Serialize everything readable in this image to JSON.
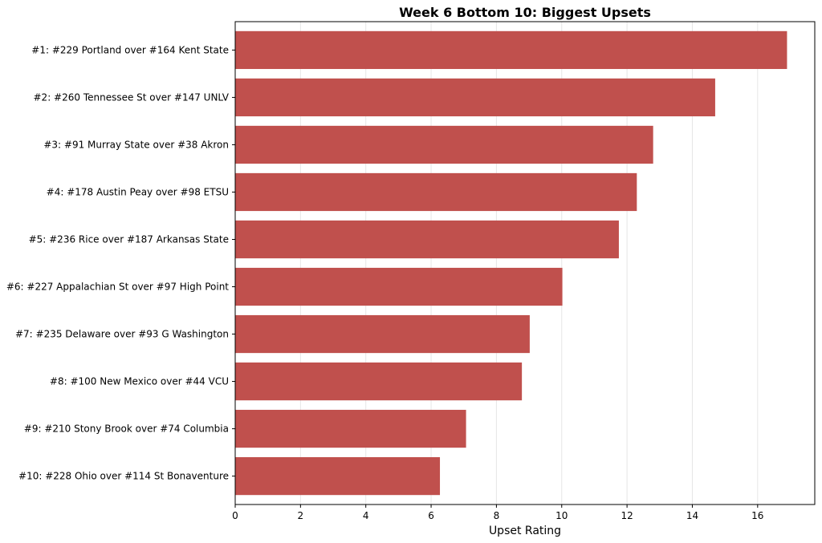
{
  "chart_data": {
    "type": "bar",
    "orientation": "horizontal",
    "title": "Week 6 Bottom 10: Biggest Upsets",
    "xlabel": "Upset Rating",
    "ylabel": "",
    "categories": [
      "#1: #229 Portland over #164 Kent State",
      "#2: #260 Tennessee St over #147 UNLV",
      "#3: #91 Murray State over #38 Akron",
      "#4: #178 Austin Peay over #98 ETSU",
      "#5: #236 Rice over #187 Arkansas State",
      "#6: #227 Appalachian St over #97 High Point",
      "#7: #235 Delaware over #93 G Washington",
      "#8: #100 New Mexico over #44 VCU",
      "#9: #210 Stony Brook over #74 Columbia",
      "#10: #228 Ohio over #114 St Bonaventure"
    ],
    "values": [
      16.9,
      14.7,
      12.8,
      12.3,
      11.75,
      10.02,
      9.02,
      8.78,
      7.07,
      6.27
    ],
    "xlim": [
      0,
      17.75
    ],
    "xticks": [
      0,
      2,
      4,
      6,
      8,
      10,
      12,
      14,
      16
    ],
    "grid": "vertical",
    "bar_color": "#c0504d"
  }
}
